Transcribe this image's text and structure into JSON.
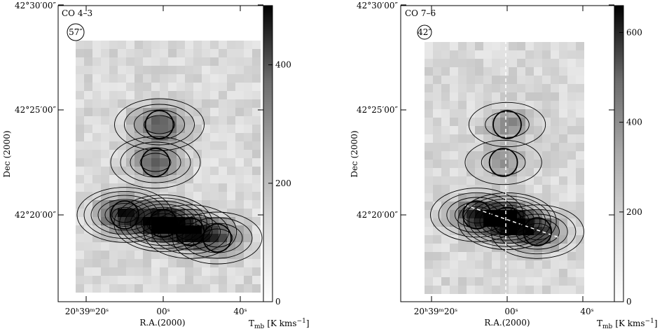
{
  "chart_data": [
    {
      "type": "heatmap",
      "panel_label": "CO 4–3",
      "beam_label": "57″",
      "xlabel": "R.A.(2000)",
      "ylabel": "Dec (2000)",
      "colorbar_label": "Tₘ♭ [K kms⁻¹]",
      "colorbar_label_main": "T",
      "colorbar_label_sub": "mb",
      "colorbar_label_rest": "[K kms",
      "colorbar_label_sup": "−1",
      "colorbar_label_end": "]",
      "colorbar_range": [
        0,
        500
      ],
      "colorbar_ticks": [
        "0",
        "200",
        "400"
      ],
      "colorbar_tick_values": [
        0,
        200,
        400
      ],
      "x_ticks": [
        "20ʰ39ᵐ20ˢ",
        "00ˢ",
        "40ˢ"
      ],
      "y_ticks": [
        "42°30′00″",
        "42°25′00″",
        "42°20′00″"
      ],
      "peaks": [
        {
          "ra_offset_s": -1,
          "dec_arcmin": 24.3,
          "value": 260
        },
        {
          "ra_offset_s": -2,
          "dec_arcmin": 22.5,
          "value": 230
        },
        {
          "ra_offset_s": -10,
          "dec_arcmin": 20.0,
          "value": 380
        },
        {
          "ra_offset_s": 0,
          "dec_arcmin": 19.6,
          "value": 500
        },
        {
          "ra_offset_s": 7,
          "dec_arcmin": 19.2,
          "value": 330
        },
        {
          "ra_offset_s": 14,
          "dec_arcmin": 18.9,
          "value": 250
        }
      ]
    },
    {
      "type": "heatmap",
      "panel_label": "CO 7–6",
      "beam_label": "42″",
      "xlabel": "R.A.(2000)",
      "ylabel": "Dec (2000)",
      "colorbar_label_main": "T",
      "colorbar_label_sub": "mb",
      "colorbar_label_rest": "[K kms",
      "colorbar_label_sup": "−1",
      "colorbar_label_end": "]",
      "colorbar_range": [
        0,
        660
      ],
      "colorbar_ticks": [
        "0",
        "200",
        "400",
        "600"
      ],
      "colorbar_tick_values": [
        0,
        200,
        400,
        600
      ],
      "x_ticks": [
        "20ʰ39ᵐ20ˢ",
        "00ˢ",
        "40ˢ"
      ],
      "y_ticks": [
        "42°30′00″",
        "42°25′00″",
        "42°20′00″"
      ],
      "peaks": [
        {
          "ra_offset_s": 0,
          "dec_arcmin": 24.3,
          "value": 200
        },
        {
          "ra_offset_s": -1,
          "dec_arcmin": 22.5,
          "value": 180
        },
        {
          "ra_offset_s": -8,
          "dec_arcmin": 20.0,
          "value": 420
        },
        {
          "ra_offset_s": 0,
          "dec_arcmin": 19.7,
          "value": 660
        },
        {
          "ra_offset_s": 8,
          "dec_arcmin": 19.2,
          "value": 420
        }
      ]
    }
  ]
}
